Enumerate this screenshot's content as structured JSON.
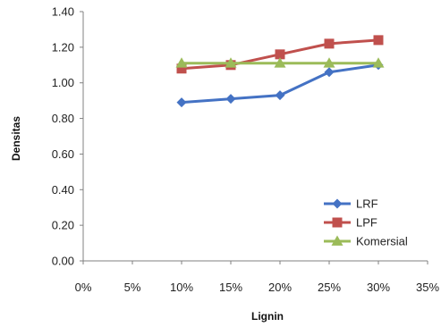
{
  "chart_data": {
    "type": "line",
    "title": "",
    "xlabel": "Lignin",
    "ylabel": "Densitas",
    "x_ticks": [
      "0%",
      "5%",
      "10%",
      "15%",
      "20%",
      "25%",
      "30%",
      "35%"
    ],
    "xlim": [
      0,
      35
    ],
    "y_ticks": [
      "0.00",
      "0.20",
      "0.40",
      "0.60",
      "0.80",
      "1.00",
      "1.20",
      "1.40"
    ],
    "ylim": [
      0,
      1.4
    ],
    "grid": false,
    "legend_position": "bottom-right",
    "series": [
      {
        "name": "LRF",
        "color": "#4472C4",
        "marker": "diamond",
        "x": [
          10,
          15,
          20,
          25,
          30
        ],
        "y": [
          0.89,
          0.91,
          0.93,
          1.06,
          1.1
        ]
      },
      {
        "name": "LPF",
        "color": "#C0504D",
        "marker": "square",
        "x": [
          10,
          15,
          20,
          25,
          30
        ],
        "y": [
          1.08,
          1.1,
          1.16,
          1.22,
          1.24
        ]
      },
      {
        "name": "Komersial",
        "color": "#9BBB59",
        "marker": "triangle",
        "x": [
          10,
          15,
          20,
          25,
          30
        ],
        "y": [
          1.11,
          1.11,
          1.11,
          1.11,
          1.11
        ]
      }
    ]
  }
}
